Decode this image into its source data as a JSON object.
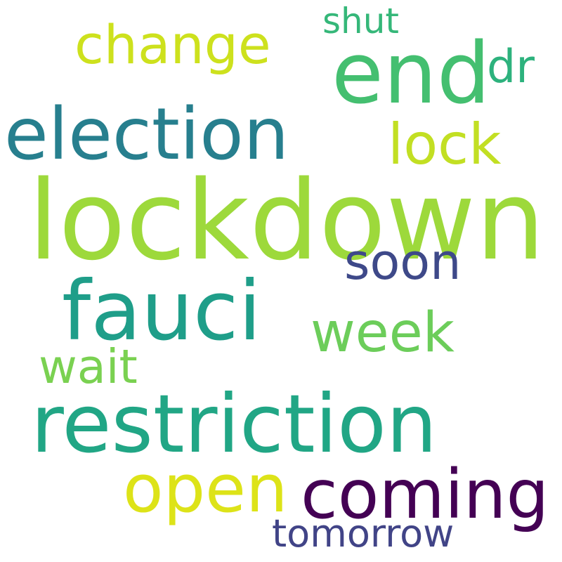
{
  "background": "#ffffff",
  "words": {
    "lockdown": {
      "text": "lockdown",
      "color": "#9dd93b"
    },
    "restriction": {
      "text": "restriction",
      "color": "#21a685"
    },
    "fauci": {
      "text": "fauci",
      "color": "#1f9e89"
    },
    "election": {
      "text": "election",
      "color": "#277f8e"
    },
    "end": {
      "text": "end",
      "color": "#44bf70"
    },
    "coming": {
      "text": "coming",
      "color": "#440154"
    },
    "open": {
      "text": "open",
      "color": "#dde318"
    },
    "change": {
      "text": "change",
      "color": "#cde11d"
    },
    "lock": {
      "text": "lock",
      "color": "#c2df23"
    },
    "week": {
      "text": "week",
      "color": "#6ccd5a"
    },
    "soon": {
      "text": "soon",
      "color": "#3e4989"
    },
    "wait": {
      "text": "wait",
      "color": "#7ad151"
    },
    "tomorrow": {
      "text": "tomorrow",
      "color": "#414487"
    },
    "shut": {
      "text": "shut",
      "color": "#35b779"
    },
    "dr": {
      "text": "dr",
      "color": "#2db27d"
    }
  }
}
